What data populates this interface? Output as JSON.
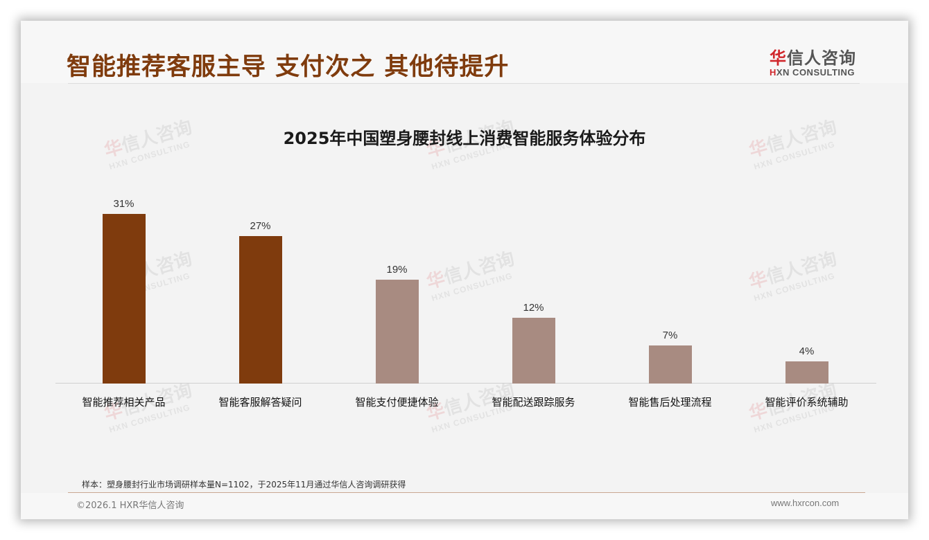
{
  "slide": {
    "title": "智能推荐客服主导 支付次之 其他待提升",
    "logo": {
      "cn_first": "华",
      "cn_rest": "信人咨询",
      "en_first": "H",
      "en_rest": "XN CONSULTING"
    },
    "watermark": {
      "cn_first": "华",
      "cn_rest": "信人咨询",
      "en": "HXN CONSULTING"
    },
    "footnote": "样本：塑身腰封行业市场调研样本量N=1102，于2025年11月通过华信人咨询调研获得",
    "copyright": "©2026.1 HXR华信人咨询",
    "website": "www.hxrcon.com"
  },
  "colors": {
    "title": "#7f3b0d",
    "bar_highlight": "#7f3b0d",
    "bar_muted": "#a88b81"
  },
  "chart_data": {
    "type": "bar",
    "title": "2025年中国塑身腰封线上消费智能服务体验分布",
    "categories": [
      "智能推荐相关产品",
      "智能客服解答疑问",
      "智能支付便捷体验",
      "智能配送跟踪服务",
      "智能售后处理流程",
      "智能评价系统辅助"
    ],
    "values": [
      31,
      27,
      19,
      12,
      7,
      4
    ],
    "value_labels": [
      "31%",
      "27%",
      "19%",
      "12%",
      "7%",
      "4%"
    ],
    "highlight": [
      true,
      true,
      false,
      false,
      false,
      false
    ],
    "xlabel": "",
    "ylabel": "",
    "ylim": [
      0,
      36
    ],
    "unit": "%",
    "grid": false,
    "legend": null
  }
}
